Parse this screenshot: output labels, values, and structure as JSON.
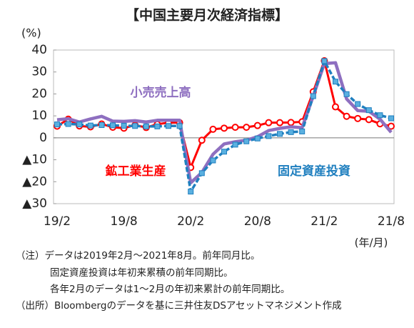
{
  "chart_data": {
    "type": "line",
    "title": "【中国主要月次経済指標】",
    "y_label": "(%)",
    "x_label": "(年/月)",
    "categories": [
      "19/2",
      null,
      null,
      null,
      null,
      null,
      "19/8",
      null,
      null,
      null,
      null,
      null,
      "20/2",
      null,
      null,
      null,
      null,
      null,
      "20/8",
      null,
      null,
      null,
      null,
      null,
      "21/2",
      null,
      null,
      null,
      null,
      null,
      "21/8"
    ],
    "series": [
      {
        "name": "鉱工業生産",
        "color": "#ff0000",
        "values": [
          5.3,
          8.5,
          5.4,
          5.0,
          6.3,
          4.8,
          4.4,
          5.8,
          4.7,
          6.2,
          6.9,
          6.9,
          -13.5,
          -1.1,
          3.9,
          4.4,
          4.8,
          4.8,
          5.6,
          6.9,
          6.9,
          7.0,
          7.3,
          21.0,
          35.1,
          14.1,
          9.8,
          8.8,
          8.3,
          6.4,
          5.3
        ]
      },
      {
        "name": "小売売上高",
        "color": "#8e6fc0",
        "values": [
          8.2,
          8.7,
          7.2,
          8.6,
          9.8,
          7.6,
          7.5,
          7.8,
          7.2,
          8.0,
          8.0,
          8.0,
          -20.5,
          -15.8,
          -7.5,
          -2.8,
          -1.8,
          -1.1,
          0.5,
          3.3,
          4.3,
          5.0,
          4.6,
          19.0,
          33.8,
          34.2,
          17.7,
          12.4,
          12.1,
          8.5,
          2.5
        ]
      },
      {
        "name": "固定資産投資",
        "color": "#1f7fbf",
        "values": [
          6.1,
          6.3,
          6.1,
          5.6,
          5.8,
          5.7,
          5.5,
          5.4,
          5.2,
          5.2,
          5.4,
          5.4,
          -24.5,
          -16.1,
          -10.3,
          -6.3,
          -3.1,
          -1.6,
          -0.3,
          0.8,
          1.8,
          2.6,
          2.9,
          19.0,
          35.0,
          25.6,
          19.9,
          15.4,
          12.6,
          10.3,
          8.9
        ]
      }
    ],
    "ylim": [
      -30,
      40
    ],
    "yticks": [
      40,
      30,
      20,
      10,
      0,
      {
        "value": -10,
        "label": "▲10"
      },
      {
        "value": -20,
        "label": "▲20"
      },
      {
        "value": -30,
        "label": "▲30"
      }
    ],
    "notes": [
      "（注）データは2019年2月～2021年8月。前年同月比。",
      "固定資産投資は年初来累積の前年同期比。",
      "各年2月のデータは1～2月の年初来累計の前年同期比。",
      "（出所）Bloombergのデータを基に三井住友DSアセットマネジメント作成"
    ]
  }
}
